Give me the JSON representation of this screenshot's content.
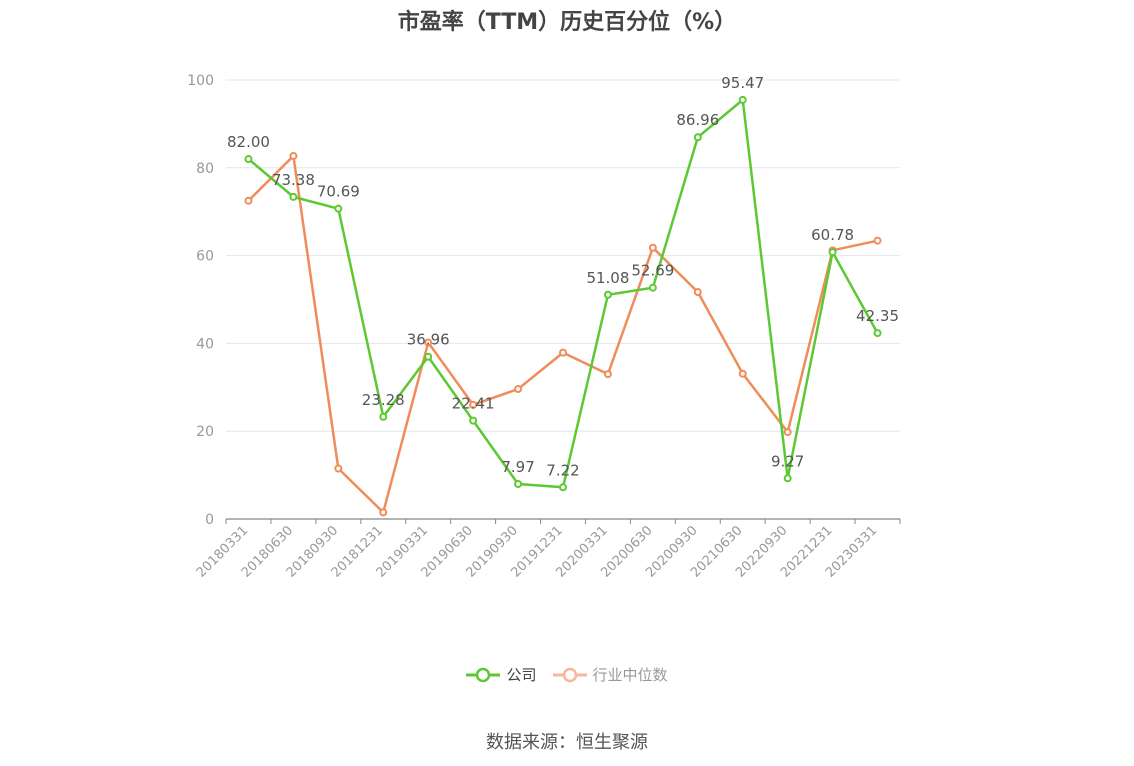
{
  "chart_data": {
    "type": "line",
    "title": "市盈率（TTM）历史百分位（%）",
    "categories": [
      "20180331",
      "20180630",
      "20180930",
      "20181231",
      "20190331",
      "20190630",
      "20190930",
      "20191231",
      "20200331",
      "20200630",
      "20200930",
      "20210630",
      "20220930",
      "20221231",
      "20230331"
    ],
    "series": [
      {
        "name": "公司",
        "color": "#5cc932",
        "show_labels": true,
        "values": [
          82.0,
          73.38,
          70.69,
          23.28,
          36.96,
          22.41,
          7.97,
          7.22,
          51.08,
          52.69,
          86.96,
          95.47,
          9.27,
          60.78,
          42.35
        ]
      },
      {
        "name": "行业中位数",
        "color": "#f08c5a",
        "show_labels": false,
        "values": [
          72.5,
          82.7,
          11.5,
          1.5,
          40.2,
          26.0,
          29.6,
          37.9,
          33.0,
          61.8,
          51.7,
          33.1,
          19.8,
          61.2,
          63.4
        ]
      }
    ],
    "ylim": [
      0,
      100
    ],
    "yticks": [
      0,
      20,
      40,
      60,
      80,
      100
    ],
    "grid": true,
    "legend": "bottom-center"
  },
  "source": "数据来源：恒生聚源"
}
